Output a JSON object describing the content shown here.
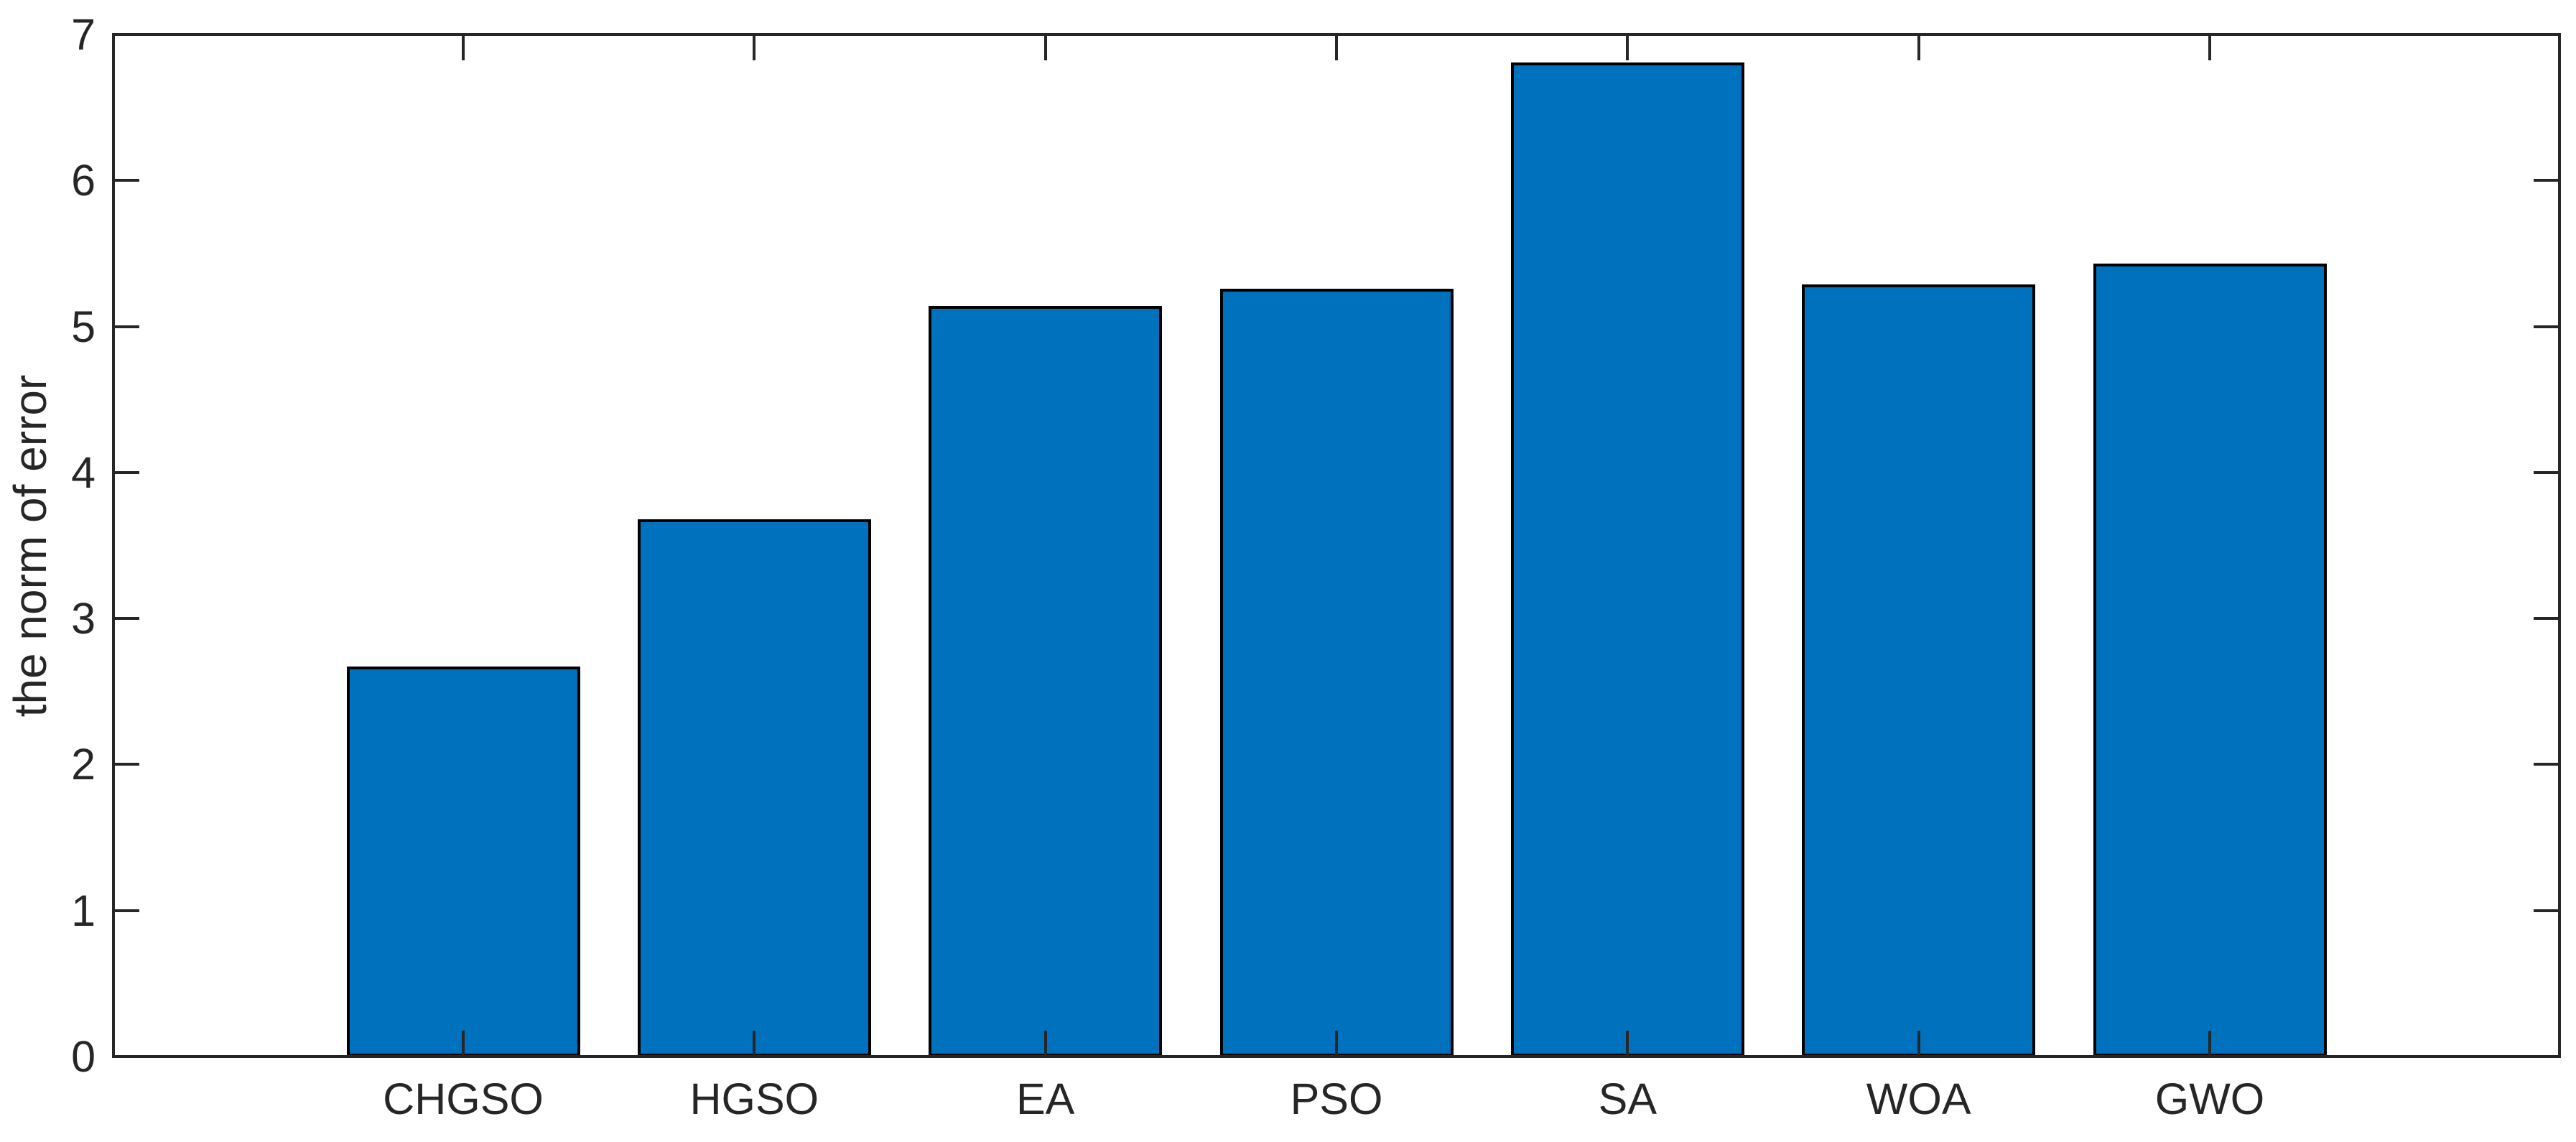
{
  "figure": {
    "background": "#ffffff"
  },
  "chart_data": {
    "type": "bar",
    "categories": [
      "CHGSO",
      "HGSO",
      "EA",
      "PSO",
      "SA",
      "WOA",
      "GWO"
    ],
    "values": [
      2.67,
      3.68,
      5.14,
      5.26,
      6.81,
      5.29,
      5.43
    ],
    "title": "",
    "xlabel": "",
    "ylabel": "the norm of error",
    "ylim": [
      0,
      7
    ],
    "yticks": [
      0,
      1,
      2,
      3,
      4,
      5,
      6,
      7
    ],
    "grid": false,
    "legend": null,
    "bar_color": "#0072BD",
    "bar_edge_color": "#000000",
    "axis_color": "#262626",
    "text_color": "#262626"
  }
}
